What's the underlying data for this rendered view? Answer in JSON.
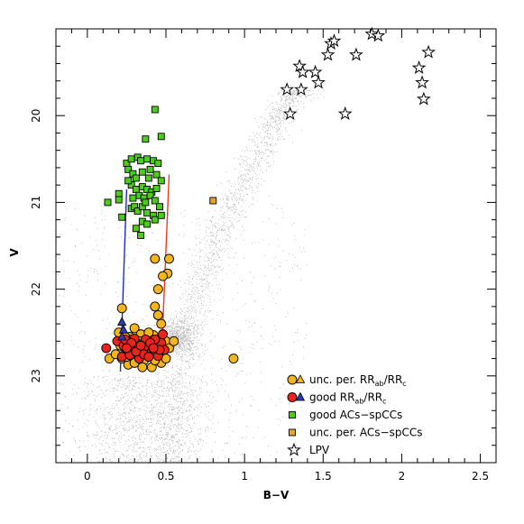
{
  "chart_data": {
    "type": "scatter",
    "title": "",
    "xlabel": "B−V",
    "ylabel": "V",
    "xlim": [
      -0.2,
      2.6
    ],
    "ylim": [
      24.0,
      19.0
    ],
    "y_inverted": true,
    "x_ticks": [
      0,
      0.5,
      1,
      1.5,
      2,
      2.5
    ],
    "x_tick_labels": [
      "0",
      "0.5",
      "1",
      "1.5",
      "2",
      "2.5"
    ],
    "y_ticks": [
      20,
      21,
      22,
      23
    ],
    "y_tick_labels": [
      "20",
      "21",
      "22",
      "23"
    ],
    "grid": false,
    "legend_position": "bottom-right",
    "legend": [
      {
        "key": "unc",
        "label": "unc. per. RR",
        "sub1": "ab",
        "mid": "/RR",
        "sub2": "c"
      },
      {
        "key": "good",
        "label": "good RR",
        "sub1": "ab",
        "mid": "/RR",
        "sub2": "c"
      },
      {
        "key": "good_ac",
        "label": "good ACs−spCCs"
      },
      {
        "key": "unc_ac",
        "label": "unc. per. ACs−spCCs"
      },
      {
        "key": "lpv",
        "label": "LPV"
      }
    ],
    "colors": {
      "field": "#b4b4b4",
      "unc_rr": "#f2b51d",
      "good_rr": "#e8251c",
      "good_rrc": "#2a3bb5",
      "good_ac": "#4ccc1c",
      "unc_ac": "#e6a42a",
      "blue_edge": "#1a2bd6",
      "red_edge": "#ee3a1f"
    },
    "instability_strip": {
      "blue_edge": [
        [
          0.21,
          22.95
        ],
        [
          0.25,
          20.85
        ]
      ],
      "red_edge": [
        [
          0.47,
          22.85
        ],
        [
          0.52,
          20.68
        ]
      ]
    },
    "series": [
      {
        "name": "LPV",
        "key": "lpv",
        "marker": "star",
        "points": [
          [
            1.55,
            19.17
          ],
          [
            1.57,
            19.14
          ],
          [
            1.53,
            19.3
          ],
          [
            1.71,
            19.3
          ],
          [
            1.81,
            19.06
          ],
          [
            1.85,
            19.08
          ],
          [
            2.17,
            19.27
          ],
          [
            2.11,
            19.45
          ],
          [
            2.13,
            19.62
          ],
          [
            2.14,
            19.81
          ],
          [
            1.35,
            19.43
          ],
          [
            1.37,
            19.5
          ],
          [
            1.45,
            19.5
          ],
          [
            1.47,
            19.62
          ],
          [
            1.27,
            19.7
          ],
          [
            1.36,
            19.7
          ],
          [
            1.29,
            19.98
          ],
          [
            1.64,
            19.98
          ]
        ]
      },
      {
        "name": "good ACs-spCCs",
        "key": "good_ac",
        "marker": "square",
        "points": [
          [
            0.43,
            19.93
          ],
          [
            0.37,
            20.27
          ],
          [
            0.47,
            20.24
          ],
          [
            0.25,
            20.55
          ],
          [
            0.28,
            20.5
          ],
          [
            0.32,
            20.48
          ],
          [
            0.34,
            20.52
          ],
          [
            0.38,
            20.5
          ],
          [
            0.42,
            20.52
          ],
          [
            0.45,
            20.55
          ],
          [
            0.26,
            20.62
          ],
          [
            0.29,
            20.67
          ],
          [
            0.31,
            20.72
          ],
          [
            0.35,
            20.65
          ],
          [
            0.4,
            20.62
          ],
          [
            0.44,
            20.68
          ],
          [
            0.47,
            20.75
          ],
          [
            0.28,
            20.8
          ],
          [
            0.31,
            20.85
          ],
          [
            0.35,
            20.82
          ],
          [
            0.38,
            20.85
          ],
          [
            0.41,
            20.88
          ],
          [
            0.44,
            20.84
          ],
          [
            0.33,
            20.92
          ],
          [
            0.36,
            20.95
          ],
          [
            0.4,
            20.92
          ],
          [
            0.43,
            20.98
          ],
          [
            0.2,
            20.9
          ],
          [
            0.2,
            20.97
          ],
          [
            0.28,
            21.07
          ],
          [
            0.3,
            21.05
          ],
          [
            0.32,
            21.1
          ],
          [
            0.35,
            21.05
          ],
          [
            0.38,
            21.12
          ],
          [
            0.42,
            21.15
          ],
          [
            0.46,
            21.05
          ],
          [
            0.13,
            21.0
          ],
          [
            0.22,
            21.17
          ],
          [
            0.35,
            21.22
          ],
          [
            0.38,
            21.25
          ],
          [
            0.43,
            21.2
          ],
          [
            0.31,
            21.3
          ],
          [
            0.34,
            21.38
          ],
          [
            0.47,
            21.15
          ],
          [
            0.37,
            21.0
          ],
          [
            0.29,
            20.95
          ],
          [
            0.39,
            20.72
          ],
          [
            0.26,
            20.75
          ]
        ]
      },
      {
        "name": "unc. per. ACs-spCCs",
        "key": "unc_ac",
        "marker": "square",
        "points": [
          [
            0.8,
            20.98
          ]
        ]
      },
      {
        "name": "unc. per. RRab/RRc",
        "key": "unc",
        "marker": "circle",
        "points": [
          [
            0.22,
            22.22
          ],
          [
            0.43,
            21.65
          ],
          [
            0.52,
            21.65
          ],
          [
            0.51,
            21.82
          ],
          [
            0.48,
            21.85
          ],
          [
            0.45,
            22.0
          ],
          [
            0.43,
            22.2
          ],
          [
            0.45,
            22.3
          ],
          [
            0.93,
            22.8
          ],
          [
            0.14,
            22.8
          ],
          [
            0.26,
            22.87
          ],
          [
            0.41,
            22.9
          ],
          [
            0.47,
            22.85
          ],
          [
            0.2,
            22.5
          ],
          [
            0.3,
            22.45
          ],
          [
            0.47,
            22.4
          ],
          [
            0.27,
            22.55
          ],
          [
            0.34,
            22.52
          ],
          [
            0.42,
            22.53
          ],
          [
            0.5,
            22.6
          ],
          [
            0.21,
            22.65
          ],
          [
            0.25,
            22.7
          ],
          [
            0.29,
            22.62
          ],
          [
            0.33,
            22.68
          ],
          [
            0.37,
            22.72
          ],
          [
            0.45,
            22.66
          ],
          [
            0.48,
            22.75
          ],
          [
            0.52,
            22.68
          ],
          [
            0.55,
            22.6
          ],
          [
            0.18,
            22.75
          ],
          [
            0.22,
            22.8
          ],
          [
            0.31,
            22.78
          ],
          [
            0.36,
            22.82
          ],
          [
            0.4,
            22.78
          ],
          [
            0.44,
            22.73
          ],
          [
            0.23,
            22.62
          ],
          [
            0.27,
            22.58
          ],
          [
            0.32,
            22.75
          ],
          [
            0.38,
            22.62
          ],
          [
            0.42,
            22.64
          ],
          [
            0.46,
            22.58
          ],
          [
            0.3,
            22.85
          ],
          [
            0.34,
            22.6
          ],
          [
            0.39,
            22.5
          ],
          [
            0.25,
            22.78
          ],
          [
            0.43,
            22.82
          ],
          [
            0.5,
            22.8
          ],
          [
            0.35,
            22.9
          ],
          [
            0.28,
            22.72
          ],
          [
            0.24,
            22.55
          ],
          [
            0.4,
            22.7
          ]
        ]
      },
      {
        "name": "good RRab",
        "key": "good",
        "marker": "circle",
        "points": [
          [
            0.12,
            22.68
          ],
          [
            0.19,
            22.6
          ],
          [
            0.23,
            22.65
          ],
          [
            0.26,
            22.72
          ],
          [
            0.29,
            22.68
          ],
          [
            0.32,
            22.63
          ],
          [
            0.35,
            22.7
          ],
          [
            0.38,
            22.66
          ],
          [
            0.41,
            22.72
          ],
          [
            0.44,
            22.67
          ],
          [
            0.47,
            22.62
          ],
          [
            0.49,
            22.7
          ],
          [
            0.22,
            22.78
          ],
          [
            0.27,
            22.76
          ],
          [
            0.33,
            22.8
          ],
          [
            0.36,
            22.75
          ],
          [
            0.39,
            22.78
          ],
          [
            0.45,
            22.77
          ],
          [
            0.24,
            22.58
          ],
          [
            0.3,
            22.57
          ],
          [
            0.37,
            22.58
          ],
          [
            0.43,
            22.58
          ],
          [
            0.48,
            22.52
          ],
          [
            0.31,
            22.72
          ],
          [
            0.34,
            22.65
          ],
          [
            0.28,
            22.62
          ],
          [
            0.4,
            22.62
          ],
          [
            0.46,
            22.7
          ],
          [
            0.25,
            22.68
          ],
          [
            0.42,
            22.68
          ]
        ]
      },
      {
        "name": "good RRc",
        "key": "good_c",
        "marker": "triangle",
        "points": [
          [
            0.22,
            22.38
          ],
          [
            0.23,
            22.47
          ],
          [
            0.22,
            22.55
          ]
        ]
      }
    ],
    "field_stars": {
      "count": 4200,
      "components": [
        {
          "name": "RGB",
          "weight": 0.42
        },
        {
          "name": "RC",
          "weight": 0.18
        },
        {
          "name": "MS",
          "weight": 0.25
        },
        {
          "name": "scatter",
          "weight": 0.15
        }
      ]
    }
  }
}
